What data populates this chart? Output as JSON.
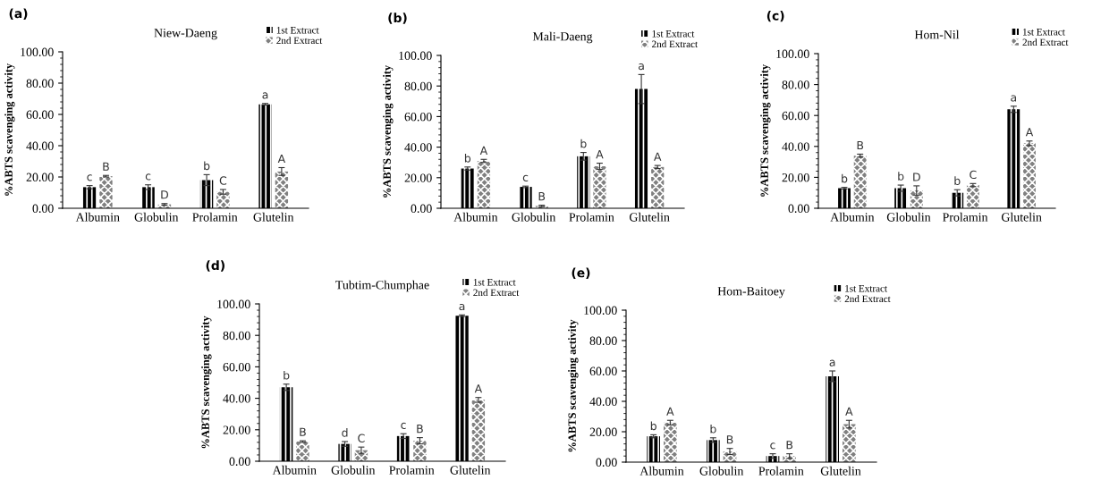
{
  "chart_data": [
    {
      "type": "bar",
      "title": "Niew-Daeng",
      "ylabel": "%ABTS scavenging activity",
      "annotations": [
        "(a)"
      ],
      "categories": [
        "Albumin",
        "Globulin",
        "Prolamin",
        "Glutelin"
      ],
      "legend": "top right",
      "series": [
        {
          "name": "1st Extract",
          "color": "#000000",
          "values": [
            13.5,
            13.5,
            18,
            66.5
          ],
          "errors": [
            1,
            1.5,
            3.5,
            0.5
          ],
          "value_labels": [
            "c",
            "c",
            "b",
            "a"
          ]
        },
        {
          "name": "2nd Extract",
          "color": "#808080",
          "values": [
            20.5,
            2.5,
            10.5,
            23.5
          ],
          "errors": [
            0.5,
            0.5,
            1.5,
            2.5
          ],
          "value_labels": [
            "B",
            "D",
            "C",
            "A"
          ]
        }
      ],
      "ylim": [
        0,
        100
      ],
      "yticks": [
        {
          "value": 0,
          "label": "0.00"
        },
        {
          "value": 20,
          "label": "20.00"
        },
        {
          "value": 40,
          "label": "40.00"
        },
        {
          "value": 60,
          "label": "60.00"
        },
        {
          "value": 80,
          "label": "80.00"
        },
        {
          "value": 100,
          "label": "100.00"
        }
      ],
      "grid": false
    },
    {
      "type": "bar",
      "title": "Mali-Daeng",
      "ylabel": "%ABTS scavenging activity",
      "annotations": [
        "(b)"
      ],
      "categories": [
        "Albumin",
        "Globulin",
        "Prolamin",
        "Glutelin"
      ],
      "legend": "top right",
      "series": [
        {
          "name": "1st Extract",
          "color": "#000000",
          "values": [
            26,
            14,
            34,
            78
          ],
          "errors": [
            1,
            0.5,
            2.5,
            9.5
          ],
          "value_labels": [
            "b",
            "c",
            "b",
            "a"
          ]
        },
        {
          "name": "2nd Extract",
          "color": "#808080",
          "values": [
            31,
            1.5,
            27.5,
            27
          ],
          "errors": [
            1,
            0.5,
            2,
            1
          ],
          "value_labels": [
            "A",
            "B",
            "A",
            "A"
          ]
        }
      ],
      "ylim": [
        0,
        100
      ],
      "yticks": [
        {
          "value": 0,
          "label": "0.00"
        },
        {
          "value": 20,
          "label": "20.00"
        },
        {
          "value": 40,
          "label": "40.00"
        },
        {
          "value": 60,
          "label": "60.00"
        },
        {
          "value": 80,
          "label": "80.00"
        },
        {
          "value": 100,
          "label": "100.00"
        }
      ],
      "grid": false
    },
    {
      "type": "bar",
      "title": "Hom-Nil",
      "ylabel": "%ABTS scavenging activity",
      "annotations": [
        "(c)"
      ],
      "categories": [
        "Albumin",
        "Globulin",
        "Prolamin",
        "Glutelin"
      ],
      "legend": "top right",
      "series": [
        {
          "name": "1st Extract",
          "color": "#000000",
          "values": [
            13,
            13,
            10,
            64
          ],
          "errors": [
            0.5,
            2,
            2,
            2
          ],
          "value_labels": [
            "b",
            "b",
            "b",
            "a"
          ]
        },
        {
          "name": "2nd Extract",
          "color": "#808080",
          "values": [
            34,
            11.5,
            15,
            42
          ],
          "errors": [
            1,
            3,
            1,
            1.5
          ],
          "value_labels": [
            "B",
            "D",
            "C",
            "A"
          ]
        }
      ],
      "ylim": [
        0,
        100
      ],
      "yticks": [
        {
          "value": 0,
          "label": "0.00"
        },
        {
          "value": 20,
          "label": "20.00"
        },
        {
          "value": 40,
          "label": "40.00"
        },
        {
          "value": 60,
          "label": "60.00"
        },
        {
          "value": 80,
          "label": "80.00"
        },
        {
          "value": 100,
          "label": "100.00"
        }
      ],
      "grid": false
    },
    {
      "type": "bar",
      "title": "Tubtim-Chumphae",
      "ylabel": "%ABTS scavenging activity",
      "annotations": [
        "(d)"
      ],
      "categories": [
        "Albumin",
        "Globulin",
        "Prolamin",
        "Glutelin"
      ],
      "legend": "top right",
      "series": [
        {
          "name": "1st Extract",
          "color": "#000000",
          "values": [
            47,
            11,
            16,
            92.5
          ],
          "errors": [
            2,
            1.5,
            1.5,
            0.5
          ],
          "value_labels": [
            "b",
            "d",
            "c",
            "a"
          ]
        },
        {
          "name": "2nd Extract",
          "color": "#808080",
          "values": [
            12.5,
            7,
            13,
            39
          ],
          "errors": [
            0.5,
            2,
            2,
            1.5
          ],
          "value_labels": [
            "B",
            "C",
            "B",
            "A"
          ]
        }
      ],
      "ylim": [
        0,
        100
      ],
      "yticks": [
        {
          "value": 0,
          "label": "0.00"
        },
        {
          "value": 20,
          "label": "20.00"
        },
        {
          "value": 40,
          "label": "40.00"
        },
        {
          "value": 60,
          "label": "60.00"
        },
        {
          "value": 80,
          "label": "80.00"
        },
        {
          "value": 100,
          "label": "100.00"
        }
      ],
      "grid": false
    },
    {
      "type": "bar",
      "title": "Hom-Baitoey",
      "ylabel": "%ABTS scavenging activity",
      "annotations": [
        "(e)"
      ],
      "categories": [
        "Albumin",
        "Globulin",
        "Prolamin",
        "Glutelin"
      ],
      "legend": "top right",
      "series": [
        {
          "name": "1st Extract",
          "color": "#000000",
          "values": [
            17,
            14.5,
            4,
            56.5
          ],
          "errors": [
            1,
            1.5,
            1.5,
            3.5
          ],
          "value_labels": [
            "b",
            "b",
            "c",
            "a"
          ]
        },
        {
          "name": "2nd Extract",
          "color": "#808080",
          "values": [
            26,
            7,
            4,
            25
          ],
          "errors": [
            1.5,
            2,
            1.5,
            2.5
          ],
          "value_labels": [
            "A",
            "B",
            "B",
            "A"
          ]
        }
      ],
      "ylim": [
        0,
        100
      ],
      "yticks": [
        {
          "value": 0,
          "label": "0.00"
        },
        {
          "value": 20,
          "label": "20.00"
        },
        {
          "value": 40,
          "label": "40.00"
        },
        {
          "value": 60,
          "label": "60.00"
        },
        {
          "value": 80,
          "label": "80.00"
        },
        {
          "value": 100,
          "label": "100.00"
        }
      ],
      "grid": false
    }
  ]
}
